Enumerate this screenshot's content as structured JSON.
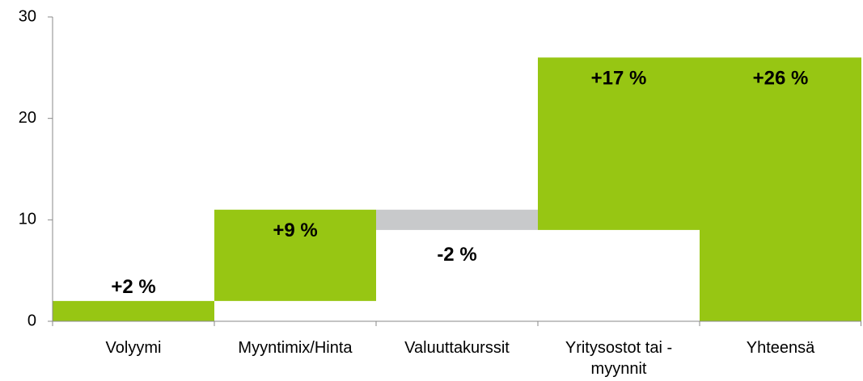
{
  "chart_data": {
    "type": "waterfall",
    "categories": [
      "Volyymi",
      "Myyntimix/Hinta",
      "Valuuttakurssit",
      "Yritysostot tai -\nmyynnit",
      "Yhteensä"
    ],
    "values": [
      2,
      9,
      -2,
      17,
      26
    ],
    "value_labels": [
      "+2 %",
      "+9 %",
      "-2 %",
      "+17 %",
      "+26 %"
    ],
    "totals": [
      false,
      false,
      false,
      false,
      true
    ],
    "color": "#97c613",
    "negative_color": "#c8c9cb",
    "ylim": [
      0,
      30
    ],
    "yticks": [
      0,
      10,
      20,
      30
    ]
  }
}
